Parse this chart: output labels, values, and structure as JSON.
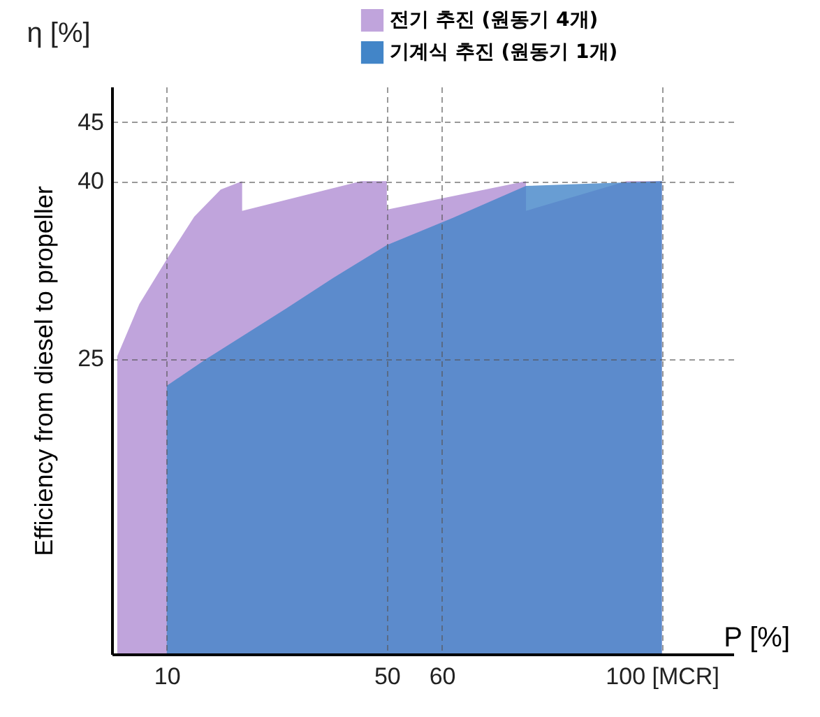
{
  "chart_data": {
    "type": "area",
    "xlabel": "P [%]",
    "ylabel": "Efficiency from diesel to propeller",
    "annotations": [
      "η [%]"
    ],
    "xlim": [
      0,
      113
    ],
    "xticks": [
      10,
      50,
      60,
      {
        "value": 100,
        "label": "100 [MCR]"
      }
    ],
    "ylim": [
      0,
      48
    ],
    "yticks": [
      25,
      40,
      45
    ],
    "grid": true,
    "legend": "top right",
    "series": [
      {
        "name": "전기 추진 (원동기 4개)",
        "color": "#c0a4dc",
        "x": [
          1,
          5,
          10,
          15,
          19.8,
          23.7,
          23.7,
          45.3,
          50,
          50,
          75.3,
          75.3,
          93.6,
          100
        ],
        "values": [
          25.2,
          29.6,
          33.4,
          37,
          39.3,
          40,
          37.5,
          40,
          40,
          37.6,
          40,
          37.5,
          40,
          40
        ]
      },
      {
        "name": "기계식 추진 (원동기 1개)",
        "color": "#4285c8",
        "x": [
          10,
          17.3,
          31.6,
          40.2,
          50,
          62,
          75.3,
          87,
          100
        ],
        "values": [
          22.7,
          25,
          29.2,
          31.8,
          34.6,
          36.9,
          39.6,
          39.8,
          40
        ]
      }
    ]
  }
}
